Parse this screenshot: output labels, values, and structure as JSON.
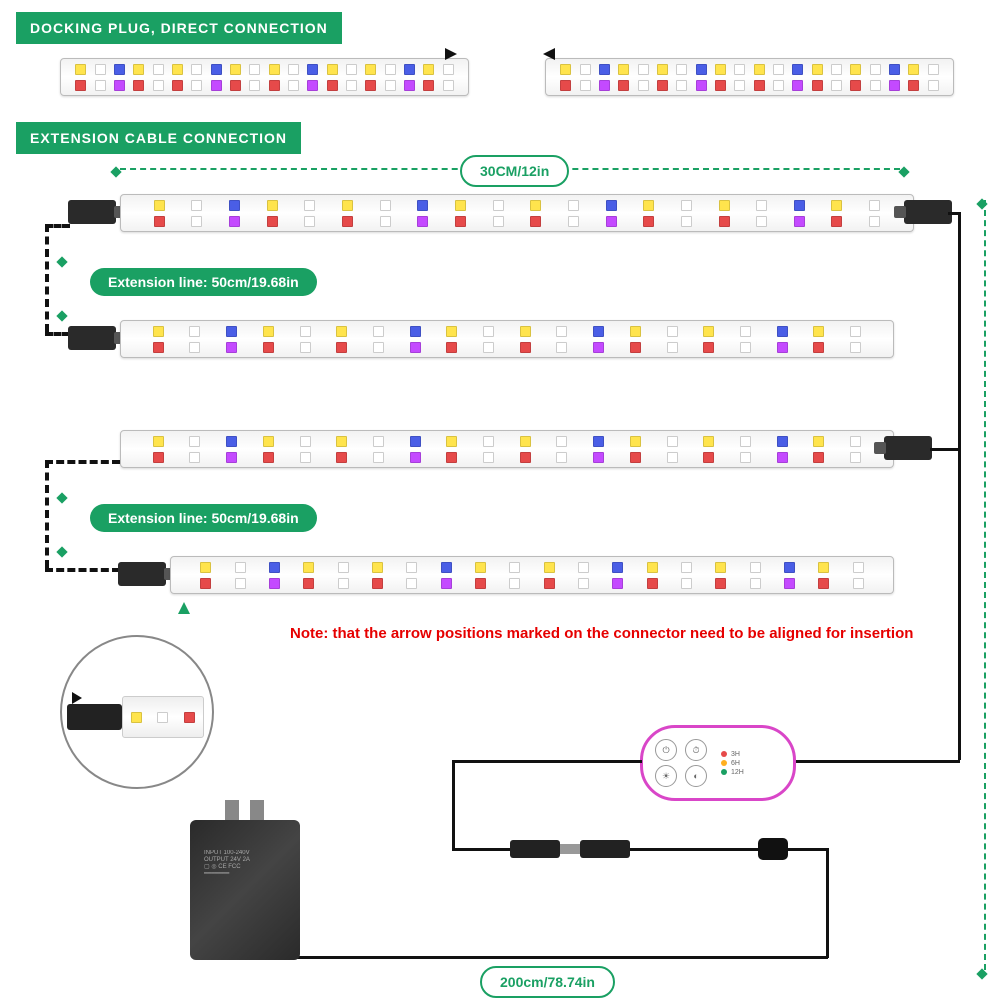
{
  "headers": {
    "docking": "DOCKING PLUG, DIRECT CONNECTION",
    "extension": "EXTENSION CABLE CONNECTION"
  },
  "dimensions": {
    "strip_width": "30CM/12in",
    "extension_line_1": "Extension line:  50cm/19.68in",
    "extension_line_2": "Extension line:  50cm/19.68in",
    "main_cable": "200cm/78.74in"
  },
  "note": "Note: that the arrow positions marked on the connector need to be aligned for insertion",
  "controller": {
    "timer_labels": [
      "3H",
      "6H",
      "12H"
    ]
  },
  "colors": {
    "accent": "#1aa063",
    "note_color": "#e60000",
    "controller_border": "#d946c8",
    "cable": "#111111"
  },
  "led_pattern_top": [
    "y",
    "w",
    "b",
    "y",
    "w",
    "y",
    "w",
    "b",
    "y",
    "w",
    "y",
    "w",
    "b",
    "y",
    "w",
    "y",
    "w",
    "b",
    "y",
    "w"
  ],
  "led_pattern_bot": [
    "r",
    "w",
    "p",
    "r",
    "w",
    "r",
    "w",
    "p",
    "r",
    "w",
    "r",
    "w",
    "p",
    "r",
    "w",
    "r",
    "w",
    "p",
    "r",
    "w"
  ]
}
